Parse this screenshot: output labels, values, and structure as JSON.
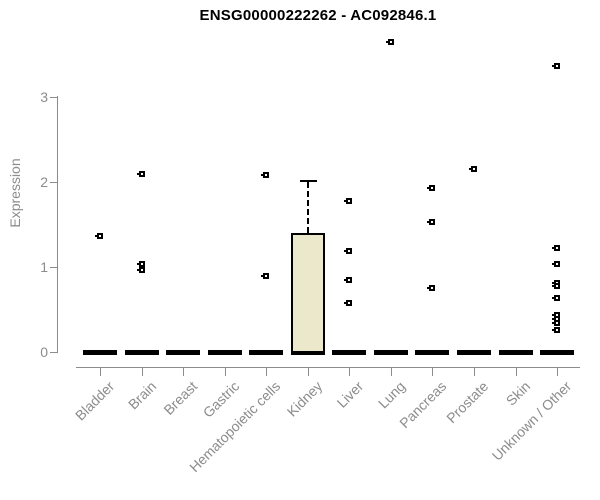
{
  "title": "ENSG00000222262 - AC092846.1",
  "axes": {
    "y_label": "Expression",
    "y_tick_labels": [
      "0",
      "1",
      "2",
      "3"
    ]
  },
  "colors": {
    "background": "#ffffff",
    "box_fill": "#ece8cc",
    "axis_gray": "#8c8c8c",
    "data_black": "#000000"
  },
  "chart_data": {
    "type": "boxplot",
    "title": "ENSG00000222262 - AC092846.1",
    "xlabel": "",
    "ylabel": "Expression",
    "y_axis_range": [
      0,
      3
    ],
    "yticks": [
      0,
      1,
      2,
      3
    ],
    "grid": false,
    "legend": false,
    "categories": [
      "Bladder",
      "Brain",
      "Breast",
      "Gastric",
      "Hematopoietic cells",
      "Kidney",
      "Liver",
      "Lung",
      "Pancreas",
      "Prostate",
      "Skin",
      "Unknown / Other"
    ],
    "boxes": [
      {
        "category": "Bladder",
        "q1": 0,
        "median": 0,
        "q3": 0,
        "whisker_low": 0,
        "whisker_high": 0,
        "outliers": [
          1.37
        ]
      },
      {
        "category": "Brain",
        "q1": 0,
        "median": 0,
        "q3": 0,
        "whisker_low": 0,
        "whisker_high": 0,
        "outliers": [
          2.1,
          1.03,
          0.96
        ]
      },
      {
        "category": "Breast",
        "q1": 0,
        "median": 0,
        "q3": 0,
        "whisker_low": 0,
        "whisker_high": 0,
        "outliers": []
      },
      {
        "category": "Gastric",
        "q1": 0,
        "median": 0,
        "q3": 0,
        "whisker_low": 0,
        "whisker_high": 0,
        "outliers": []
      },
      {
        "category": "Hematopoietic cells",
        "q1": 0,
        "median": 0,
        "q3": 0,
        "whisker_low": 0,
        "whisker_high": 0,
        "outliers": [
          2.08,
          0.9
        ]
      },
      {
        "category": "Kidney",
        "q1": 0,
        "median": 0,
        "q3": 1.4,
        "whisker_low": 0,
        "whisker_high": 2.02,
        "outliers": []
      },
      {
        "category": "Liver",
        "q1": 0,
        "median": 0,
        "q3": 0,
        "whisker_low": 0,
        "whisker_high": 0,
        "outliers": [
          1.78,
          1.19,
          0.85,
          0.58
        ]
      },
      {
        "category": "Lung",
        "q1": 0,
        "median": 0,
        "q3": 0,
        "whisker_low": 0,
        "whisker_high": 0,
        "outliers": [
          3.65
        ]
      },
      {
        "category": "Pancreas",
        "q1": 0,
        "median": 0,
        "q3": 0,
        "whisker_low": 0,
        "whisker_high": 0,
        "outliers": [
          1.93,
          1.53,
          0.75
        ]
      },
      {
        "category": "Prostate",
        "q1": 0,
        "median": 0,
        "q3": 0,
        "whisker_low": 0,
        "whisker_high": 0,
        "outliers": [
          2.15
        ]
      },
      {
        "category": "Skin",
        "q1": 0,
        "median": 0,
        "q3": 0,
        "whisker_low": 0,
        "whisker_high": 0,
        "outliers": []
      },
      {
        "category": "Unknown / Other",
        "q1": 0,
        "median": 0,
        "q3": 0,
        "whisker_low": 0,
        "whisker_high": 0,
        "outliers": [
          3.36,
          1.22,
          1.04,
          0.81,
          0.78,
          0.63,
          0.44,
          0.39,
          0.34,
          0.26
        ]
      }
    ]
  }
}
